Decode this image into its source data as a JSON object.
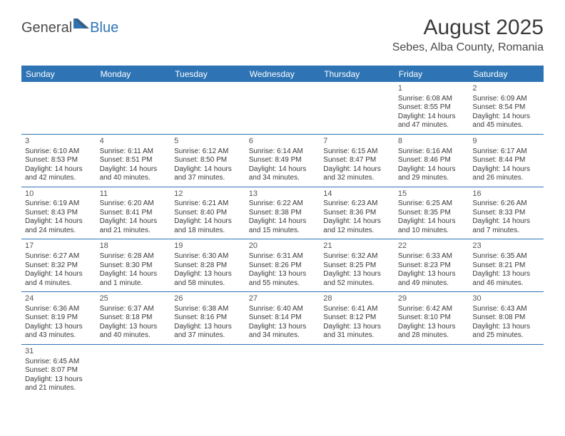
{
  "brand": {
    "part1": "General",
    "part2": "Blue",
    "color1": "#4a4a4a",
    "color2": "#2e74b5"
  },
  "title": "August 2025",
  "location": "Sebes, Alba County, Romania",
  "header_bg": "#2e74b5",
  "header_fg": "#ffffff",
  "border_color": "#2e74b5",
  "day_names": [
    "Sunday",
    "Monday",
    "Tuesday",
    "Wednesday",
    "Thursday",
    "Friday",
    "Saturday"
  ],
  "weeks": [
    [
      null,
      null,
      null,
      null,
      null,
      {
        "d": "1",
        "sr": "Sunrise: 6:08 AM",
        "ss": "Sunset: 8:55 PM",
        "dl1": "Daylight: 14 hours",
        "dl2": "and 47 minutes."
      },
      {
        "d": "2",
        "sr": "Sunrise: 6:09 AM",
        "ss": "Sunset: 8:54 PM",
        "dl1": "Daylight: 14 hours",
        "dl2": "and 45 minutes."
      }
    ],
    [
      {
        "d": "3",
        "sr": "Sunrise: 6:10 AM",
        "ss": "Sunset: 8:53 PM",
        "dl1": "Daylight: 14 hours",
        "dl2": "and 42 minutes."
      },
      {
        "d": "4",
        "sr": "Sunrise: 6:11 AM",
        "ss": "Sunset: 8:51 PM",
        "dl1": "Daylight: 14 hours",
        "dl2": "and 40 minutes."
      },
      {
        "d": "5",
        "sr": "Sunrise: 6:12 AM",
        "ss": "Sunset: 8:50 PM",
        "dl1": "Daylight: 14 hours",
        "dl2": "and 37 minutes."
      },
      {
        "d": "6",
        "sr": "Sunrise: 6:14 AM",
        "ss": "Sunset: 8:49 PM",
        "dl1": "Daylight: 14 hours",
        "dl2": "and 34 minutes."
      },
      {
        "d": "7",
        "sr": "Sunrise: 6:15 AM",
        "ss": "Sunset: 8:47 PM",
        "dl1": "Daylight: 14 hours",
        "dl2": "and 32 minutes."
      },
      {
        "d": "8",
        "sr": "Sunrise: 6:16 AM",
        "ss": "Sunset: 8:46 PM",
        "dl1": "Daylight: 14 hours",
        "dl2": "and 29 minutes."
      },
      {
        "d": "9",
        "sr": "Sunrise: 6:17 AM",
        "ss": "Sunset: 8:44 PM",
        "dl1": "Daylight: 14 hours",
        "dl2": "and 26 minutes."
      }
    ],
    [
      {
        "d": "10",
        "sr": "Sunrise: 6:19 AM",
        "ss": "Sunset: 8:43 PM",
        "dl1": "Daylight: 14 hours",
        "dl2": "and 24 minutes."
      },
      {
        "d": "11",
        "sr": "Sunrise: 6:20 AM",
        "ss": "Sunset: 8:41 PM",
        "dl1": "Daylight: 14 hours",
        "dl2": "and 21 minutes."
      },
      {
        "d": "12",
        "sr": "Sunrise: 6:21 AM",
        "ss": "Sunset: 8:40 PM",
        "dl1": "Daylight: 14 hours",
        "dl2": "and 18 minutes."
      },
      {
        "d": "13",
        "sr": "Sunrise: 6:22 AM",
        "ss": "Sunset: 8:38 PM",
        "dl1": "Daylight: 14 hours",
        "dl2": "and 15 minutes."
      },
      {
        "d": "14",
        "sr": "Sunrise: 6:23 AM",
        "ss": "Sunset: 8:36 PM",
        "dl1": "Daylight: 14 hours",
        "dl2": "and 12 minutes."
      },
      {
        "d": "15",
        "sr": "Sunrise: 6:25 AM",
        "ss": "Sunset: 8:35 PM",
        "dl1": "Daylight: 14 hours",
        "dl2": "and 10 minutes."
      },
      {
        "d": "16",
        "sr": "Sunrise: 6:26 AM",
        "ss": "Sunset: 8:33 PM",
        "dl1": "Daylight: 14 hours",
        "dl2": "and 7 minutes."
      }
    ],
    [
      {
        "d": "17",
        "sr": "Sunrise: 6:27 AM",
        "ss": "Sunset: 8:32 PM",
        "dl1": "Daylight: 14 hours",
        "dl2": "and 4 minutes."
      },
      {
        "d": "18",
        "sr": "Sunrise: 6:28 AM",
        "ss": "Sunset: 8:30 PM",
        "dl1": "Daylight: 14 hours",
        "dl2": "and 1 minute."
      },
      {
        "d": "19",
        "sr": "Sunrise: 6:30 AM",
        "ss": "Sunset: 8:28 PM",
        "dl1": "Daylight: 13 hours",
        "dl2": "and 58 minutes."
      },
      {
        "d": "20",
        "sr": "Sunrise: 6:31 AM",
        "ss": "Sunset: 8:26 PM",
        "dl1": "Daylight: 13 hours",
        "dl2": "and 55 minutes."
      },
      {
        "d": "21",
        "sr": "Sunrise: 6:32 AM",
        "ss": "Sunset: 8:25 PM",
        "dl1": "Daylight: 13 hours",
        "dl2": "and 52 minutes."
      },
      {
        "d": "22",
        "sr": "Sunrise: 6:33 AM",
        "ss": "Sunset: 8:23 PM",
        "dl1": "Daylight: 13 hours",
        "dl2": "and 49 minutes."
      },
      {
        "d": "23",
        "sr": "Sunrise: 6:35 AM",
        "ss": "Sunset: 8:21 PM",
        "dl1": "Daylight: 13 hours",
        "dl2": "and 46 minutes."
      }
    ],
    [
      {
        "d": "24",
        "sr": "Sunrise: 6:36 AM",
        "ss": "Sunset: 8:19 PM",
        "dl1": "Daylight: 13 hours",
        "dl2": "and 43 minutes."
      },
      {
        "d": "25",
        "sr": "Sunrise: 6:37 AM",
        "ss": "Sunset: 8:18 PM",
        "dl1": "Daylight: 13 hours",
        "dl2": "and 40 minutes."
      },
      {
        "d": "26",
        "sr": "Sunrise: 6:38 AM",
        "ss": "Sunset: 8:16 PM",
        "dl1": "Daylight: 13 hours",
        "dl2": "and 37 minutes."
      },
      {
        "d": "27",
        "sr": "Sunrise: 6:40 AM",
        "ss": "Sunset: 8:14 PM",
        "dl1": "Daylight: 13 hours",
        "dl2": "and 34 minutes."
      },
      {
        "d": "28",
        "sr": "Sunrise: 6:41 AM",
        "ss": "Sunset: 8:12 PM",
        "dl1": "Daylight: 13 hours",
        "dl2": "and 31 minutes."
      },
      {
        "d": "29",
        "sr": "Sunrise: 6:42 AM",
        "ss": "Sunset: 8:10 PM",
        "dl1": "Daylight: 13 hours",
        "dl2": "and 28 minutes."
      },
      {
        "d": "30",
        "sr": "Sunrise: 6:43 AM",
        "ss": "Sunset: 8:08 PM",
        "dl1": "Daylight: 13 hours",
        "dl2": "and 25 minutes."
      }
    ],
    [
      {
        "d": "31",
        "sr": "Sunrise: 6:45 AM",
        "ss": "Sunset: 8:07 PM",
        "dl1": "Daylight: 13 hours",
        "dl2": "and 21 minutes."
      },
      null,
      null,
      null,
      null,
      null,
      null
    ]
  ]
}
